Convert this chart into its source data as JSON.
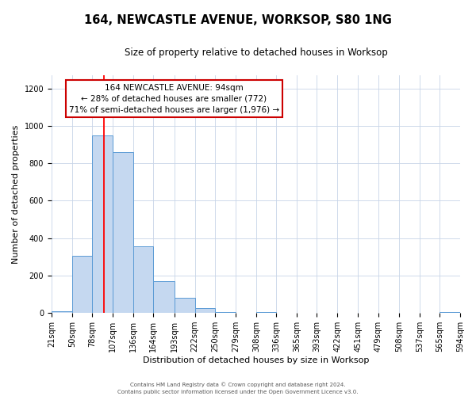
{
  "title": "164, NEWCASTLE AVENUE, WORKSOP, S80 1NG",
  "subtitle": "Size of property relative to detached houses in Worksop",
  "xlabel": "Distribution of detached houses by size in Worksop",
  "ylabel": "Number of detached properties",
  "bin_edges": [
    21,
    50,
    78,
    107,
    136,
    164,
    193,
    222,
    250,
    279,
    308,
    336,
    365,
    393,
    422,
    451,
    479,
    508,
    537,
    565,
    594
  ],
  "bar_heights": [
    10,
    305,
    950,
    860,
    355,
    170,
    80,
    25,
    5,
    0,
    5,
    0,
    0,
    0,
    0,
    0,
    0,
    0,
    0,
    5
  ],
  "bar_color": "#c5d8f0",
  "bar_edge_color": "#5b9bd5",
  "red_line_x": 94,
  "ylim": [
    0,
    1270
  ],
  "yticks": [
    0,
    200,
    400,
    600,
    800,
    1000,
    1200
  ],
  "annotation_line1": "164 NEWCASTLE AVENUE: 94sqm",
  "annotation_line2": "← 28% of detached houses are smaller (772)",
  "annotation_line3": "71% of semi-detached houses are larger (1,976) →",
  "annotation_box_color": "#ffffff",
  "annotation_box_edge_color": "#cc0000",
  "footer_line1": "Contains HM Land Registry data © Crown copyright and database right 2024.",
  "footer_line2": "Contains public sector information licensed under the Open Government Licence v3.0.",
  "background_color": "#ffffff",
  "grid_color": "#c8d4e8",
  "title_fontsize": 10.5,
  "subtitle_fontsize": 8.5,
  "axis_label_fontsize": 8,
  "tick_fontsize": 7,
  "annotation_fontsize": 7.5,
  "footer_fontsize": 5
}
